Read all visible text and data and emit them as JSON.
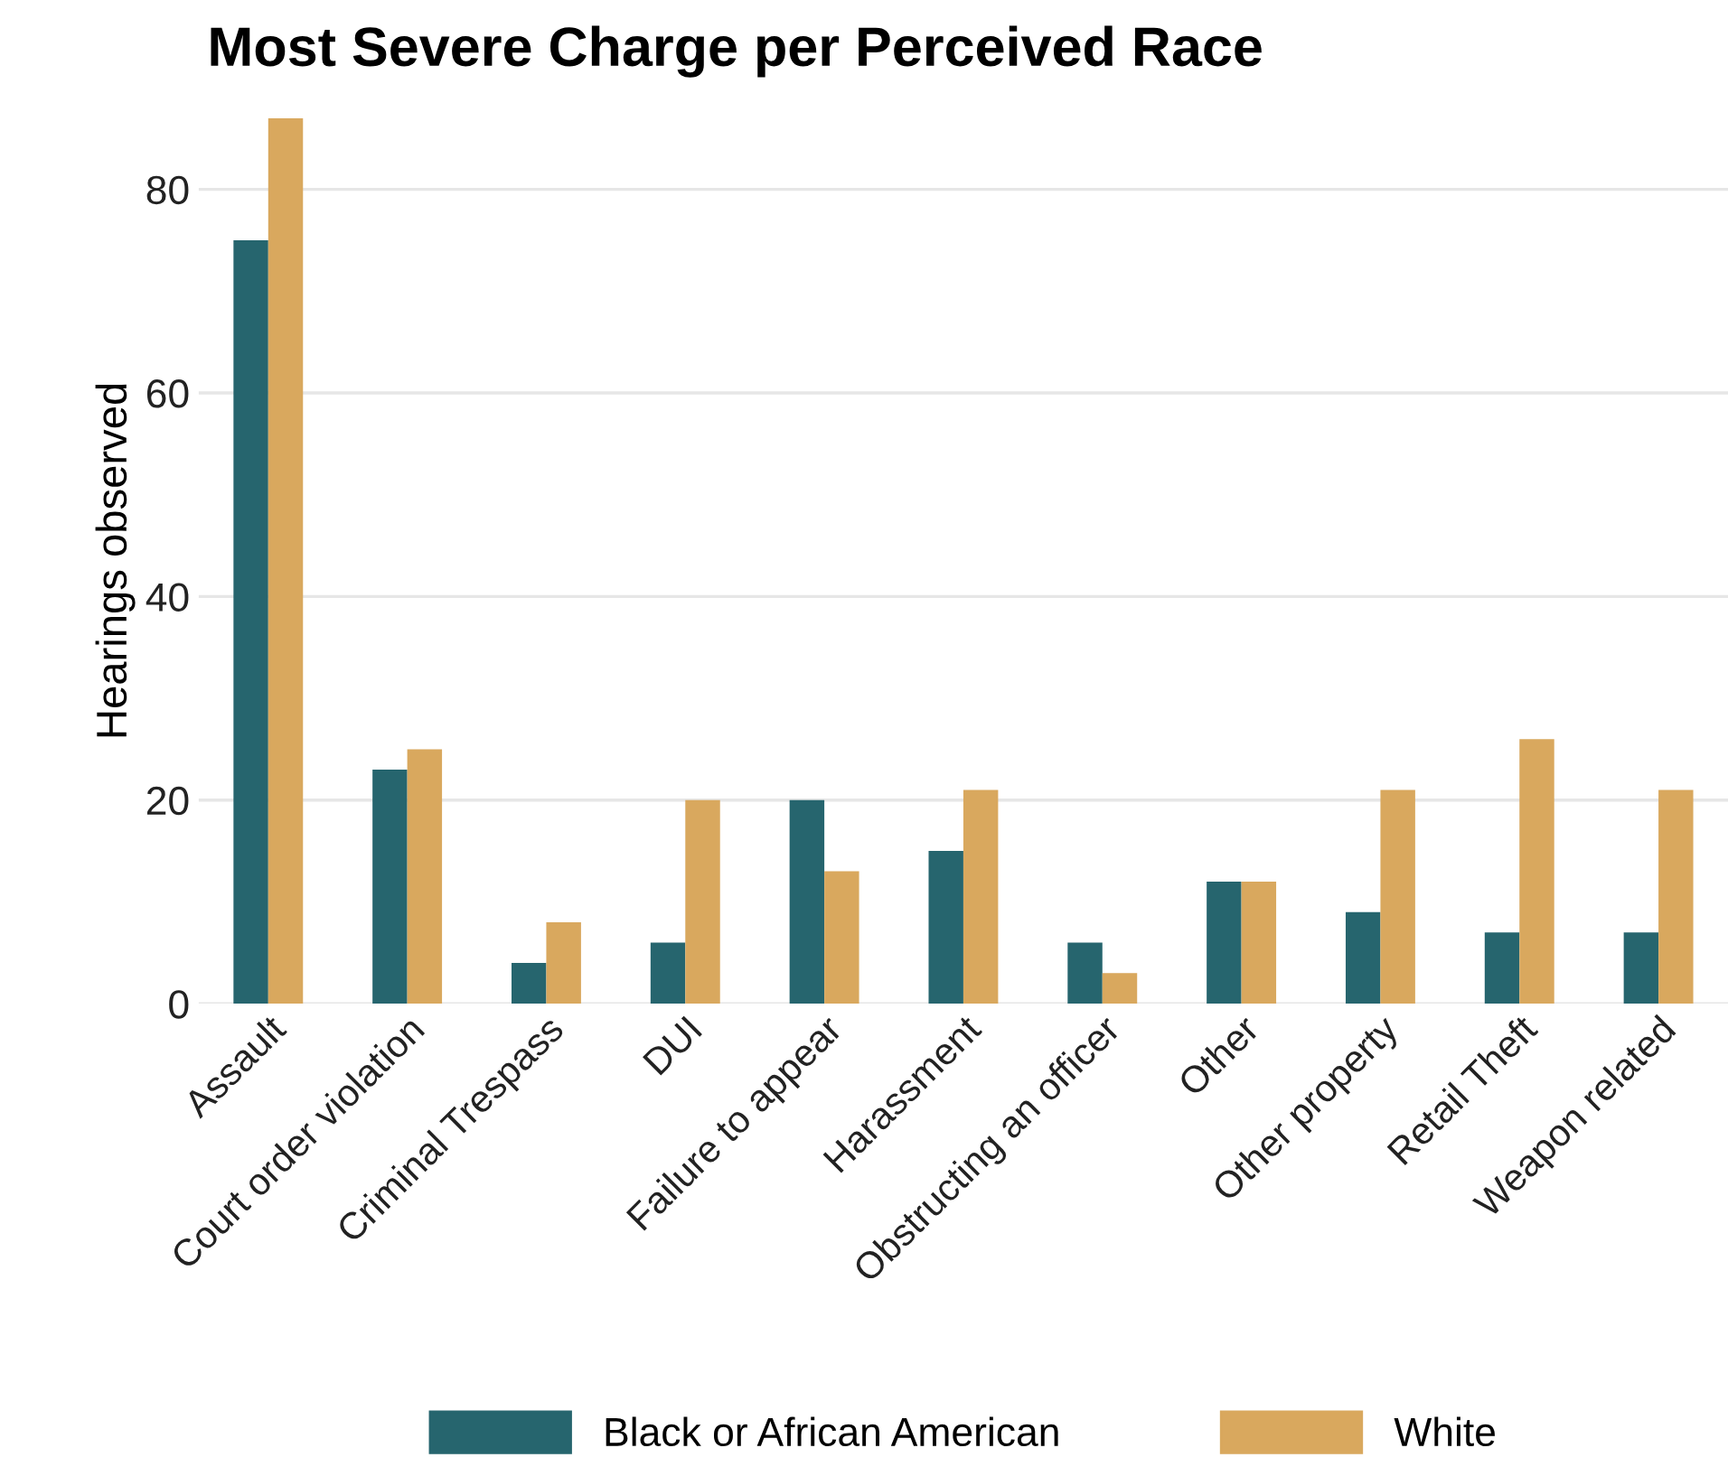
{
  "chart_data": {
    "type": "bar",
    "title": "Most Severe Charge per Perceived Race",
    "ylabel": "Hearings observed",
    "categories": [
      "Assault",
      "Court order violation",
      "Criminal Trespass",
      "DUI",
      "Failure to appear",
      "Harassment",
      "Obstructing an officer",
      "Other",
      "Other property",
      "Retail Theft",
      "Weapon related"
    ],
    "series": [
      {
        "name": "Black or African American",
        "color": "#26656e",
        "values": [
          75,
          23,
          4,
          6,
          20,
          15,
          6,
          12,
          9,
          7,
          7
        ]
      },
      {
        "name": "White",
        "color": "#d9a85e",
        "values": [
          87,
          25,
          8,
          20,
          13,
          21,
          3,
          12,
          21,
          26,
          21
        ]
      }
    ],
    "ylim": [
      0,
      87
    ],
    "yticks": [
      0,
      20,
      40,
      60,
      80
    ],
    "grid": "y",
    "legend": "bottom"
  }
}
